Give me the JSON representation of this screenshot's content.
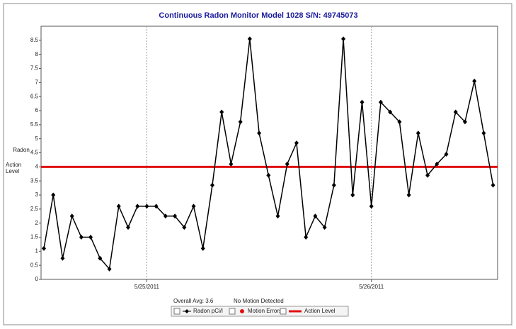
{
  "chart_data": {
    "type": "line",
    "title": "Continuous Radon Monitor Model 1028 S/N: 49745073",
    "y_label": "Radon",
    "categories": [
      null,
      null,
      null,
      null,
      null,
      null,
      null,
      null,
      null,
      null,
      null,
      "5/25/2011",
      null,
      null,
      null,
      null,
      null,
      null,
      null,
      null,
      null,
      null,
      null,
      null,
      null,
      null,
      null,
      null,
      null,
      null,
      null,
      null,
      null,
      null,
      null,
      "5/26/2011",
      null,
      null,
      null,
      null,
      null,
      null,
      null,
      null,
      null,
      null,
      null,
      null,
      null
    ],
    "series": [
      {
        "name": "Radon pCi/l",
        "color": "#000000",
        "values": [
          1.1,
          3.0,
          0.75,
          2.25,
          1.5,
          1.5,
          0.75,
          0.37,
          2.6,
          1.85,
          2.6,
          2.6,
          2.6,
          2.25,
          2.25,
          1.85,
          2.6,
          1.1,
          3.35,
          5.95,
          4.1,
          5.6,
          8.55,
          5.2,
          3.7,
          2.25,
          4.1,
          4.85,
          1.5,
          2.25,
          1.85,
          3.35,
          8.55,
          3.0,
          6.3,
          2.6,
          6.3,
          5.95,
          5.6,
          3.0,
          5.2,
          3.7,
          4.1,
          4.45,
          5.95,
          5.6,
          7.05,
          5.2,
          3.35
        ]
      }
    ],
    "action_level": {
      "name": "Action Level",
      "value": 4,
      "color": "#e01010"
    },
    "motion_errors": {
      "name": "Motion Errors",
      "color": "#e01010"
    },
    "annotations": [
      "Overall Avg: 3.6",
      "No Motion Detected"
    ],
    "ylim": [
      0,
      9
    ],
    "yticks": [
      0,
      0.5,
      1,
      1.5,
      2,
      2.5,
      3,
      3.5,
      4,
      4.5,
      5,
      5.5,
      6,
      6.5,
      7,
      7.5,
      8,
      8.5
    ],
    "grid": "x"
  }
}
